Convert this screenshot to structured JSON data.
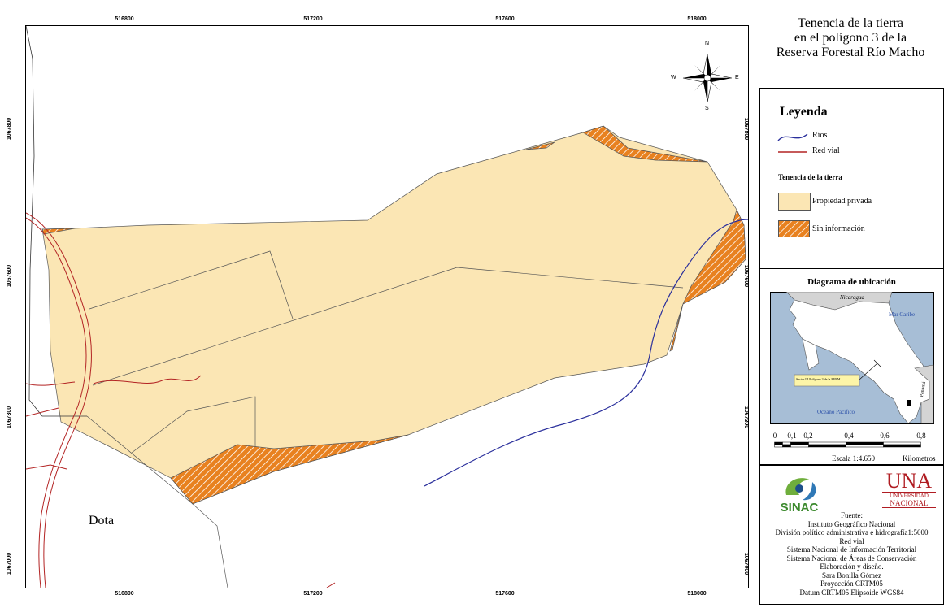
{
  "title": "Tenencia de la tierra en el polígono 3 de la Reserva Forestal Río Macho",
  "title_lines": [
    "Tenencia de la tierra",
    "en el polígono 3 de la",
    "Reserva Forestal Río Macho"
  ],
  "axes": {
    "x_ticks": [
      "516800",
      "517200",
      "517600",
      "518000"
    ],
    "y_ticks": [
      "1067800",
      "1067600",
      "1067300",
      "1067000"
    ]
  },
  "compass": {
    "n": "N",
    "s": "S",
    "e": "E",
    "w": "W"
  },
  "map_labels": {
    "dota": "Dota"
  },
  "legend": {
    "title": "Leyenda",
    "rios": "Ríos",
    "red_vial": "Red vial",
    "tenencia_title": "Tenencia de la tierra",
    "propiedad_privada": "Propiedad privada",
    "sin_informacion": "Sin información"
  },
  "diagram": {
    "title": "Diagrama de ubicación",
    "nicaragua": "Nicaragua",
    "mar_caribe": "Mar Caribe",
    "panama": "Panamá",
    "oceano_pacifico": "Océano Pacífico",
    "callout": "Sector III Polígono 3 de la RFRM"
  },
  "scale": {
    "ticks": [
      "0",
      "0,1",
      "0,2",
      "0,4",
      "0,6",
      "0,8"
    ],
    "label": "Escala 1:4.650",
    "units": "Kilometros"
  },
  "logos": {
    "sinac": "SINAC",
    "una": "UNA",
    "una_sub1": "UNIVERSIDAD",
    "una_sub2": "NACIONAL"
  },
  "credits": [
    "Fuente:",
    "Instituto Geográfico Nacional",
    "División político administrativa e hidrografía1:5000",
    "Red vial",
    "Sistema Nacional de Información Territorial",
    "Sistema Nacional de Áreas de Conservación",
    "Elaboración y diseño.",
    "Sara Bonilla Gómez",
    "Proyección CRTM05",
    "Datum CRTM05 Elipsoide WGS84"
  ],
  "colors": {
    "private_fill": "#fbe6b4",
    "unknown_fill": "#e8811f",
    "river": "#2a2f9c",
    "road": "#b32424",
    "sea": "#a7bed6",
    "land": "#ffffff",
    "neighbor": "#d4d4d4"
  }
}
